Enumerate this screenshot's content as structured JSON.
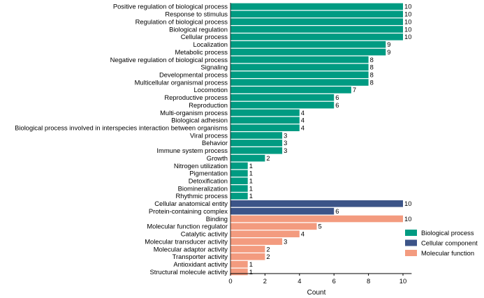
{
  "chart_data": {
    "type": "bar",
    "orientation": "horizontal",
    "xlabel": "Count",
    "xlim": [
      0,
      10.5
    ],
    "xticks": [
      0,
      2,
      4,
      6,
      8,
      10
    ],
    "grid": false,
    "legend_position": "right",
    "data_labels": true,
    "series": [
      {
        "name": "Biological process",
        "color": "#009B82"
      },
      {
        "name": "Cellular component",
        "color": "#3C5488"
      },
      {
        "name": "Molecular function",
        "color": "#F39B7F"
      }
    ],
    "bars": [
      {
        "label": "Positive regulation of biological process",
        "value": 10,
        "series": 0
      },
      {
        "label": "Response to stimulus",
        "value": 10,
        "series": 0
      },
      {
        "label": "Regulation of biological process",
        "value": 10,
        "series": 0
      },
      {
        "label": "Biological regulation",
        "value": 10,
        "series": 0
      },
      {
        "label": "Cellular process",
        "value": 10,
        "series": 0
      },
      {
        "label": "Localization",
        "value": 9,
        "series": 0
      },
      {
        "label": "Metabolic process",
        "value": 9,
        "series": 0
      },
      {
        "label": "Negative regulation of biological process",
        "value": 8,
        "series": 0
      },
      {
        "label": "Signaling",
        "value": 8,
        "series": 0
      },
      {
        "label": "Developmental process",
        "value": 8,
        "series": 0
      },
      {
        "label": "Multicellular organismal process",
        "value": 8,
        "series": 0
      },
      {
        "label": "Locomotion",
        "value": 7,
        "series": 0
      },
      {
        "label": "Reproductive process",
        "value": 6,
        "series": 0
      },
      {
        "label": "Reproduction",
        "value": 6,
        "series": 0
      },
      {
        "label": "Multi-organism process",
        "value": 4,
        "series": 0
      },
      {
        "label": "Biological adhesion",
        "value": 4,
        "series": 0
      },
      {
        "label": "Biological process involved in interspecies interaction between organisms",
        "value": 4,
        "series": 0
      },
      {
        "label": "Viral process",
        "value": 3,
        "series": 0
      },
      {
        "label": "Behavior",
        "value": 3,
        "series": 0
      },
      {
        "label": "Immune system process",
        "value": 3,
        "series": 0
      },
      {
        "label": "Growth",
        "value": 2,
        "series": 0
      },
      {
        "label": "Nitrogen utilization",
        "value": 1,
        "series": 0
      },
      {
        "label": "Pigmentation",
        "value": 1,
        "series": 0
      },
      {
        "label": "Detoxification",
        "value": 1,
        "series": 0
      },
      {
        "label": "Biomineralization",
        "value": 1,
        "series": 0
      },
      {
        "label": "Rhythmic process",
        "value": 1,
        "series": 0
      },
      {
        "label": "Cellular anatomical entity",
        "value": 10,
        "series": 1
      },
      {
        "label": "Protein-containing complex",
        "value": 6,
        "series": 1
      },
      {
        "label": "Binding",
        "value": 10,
        "series": 2
      },
      {
        "label": "Molecular function regulator",
        "value": 5,
        "series": 2
      },
      {
        "label": "Catalytic activity",
        "value": 4,
        "series": 2
      },
      {
        "label": "Molecular transducer activity",
        "value": 3,
        "series": 2
      },
      {
        "label": "Molecular adaptor activity",
        "value": 2,
        "series": 2
      },
      {
        "label": "Transporter activity",
        "value": 2,
        "series": 2
      },
      {
        "label": "Antioxidant activity",
        "value": 1,
        "series": 2
      },
      {
        "label": "Structural molecule activity",
        "value": 1,
        "series": 2
      }
    ]
  }
}
